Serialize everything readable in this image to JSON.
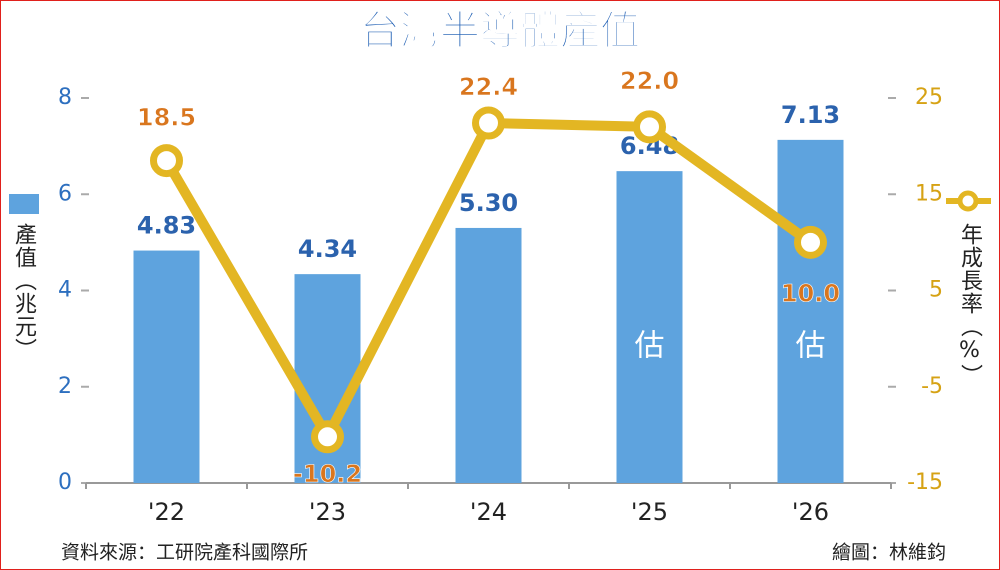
{
  "chart_data": {
    "type": "bar_line",
    "title": "台灣半導體產值",
    "categories": [
      "'22",
      "'23",
      "'24",
      "'25",
      "'26"
    ],
    "series": [
      {
        "name": "產值（兆元）",
        "type": "bar",
        "color": "#5ea3de",
        "values": [
          4.83,
          4.34,
          5.3,
          6.48,
          7.13
        ],
        "value_labels": [
          "4.83",
          "4.34",
          "5.30",
          "6.48",
          "7.13"
        ]
      },
      {
        "name": "年成長率（%）",
        "type": "line",
        "axis": "y2",
        "color": "#e3b623",
        "values": [
          18.5,
          -10.2,
          22.4,
          22.0,
          10.0
        ],
        "value_labels": [
          "18.5",
          "-10.2",
          "22.4",
          "22.0",
          "10.0"
        ]
      }
    ],
    "ylim": [
      0,
      8
    ],
    "yticks": [
      0,
      2,
      4,
      6,
      8
    ],
    "y2lim": [
      -15,
      25
    ],
    "y2ticks": [
      -15,
      -5,
      5,
      15,
      25
    ],
    "annotations": [
      "估",
      "估"
    ],
    "source": "資料來源：工研院產科國際所",
    "credit": "繪圖：林維鈞"
  }
}
